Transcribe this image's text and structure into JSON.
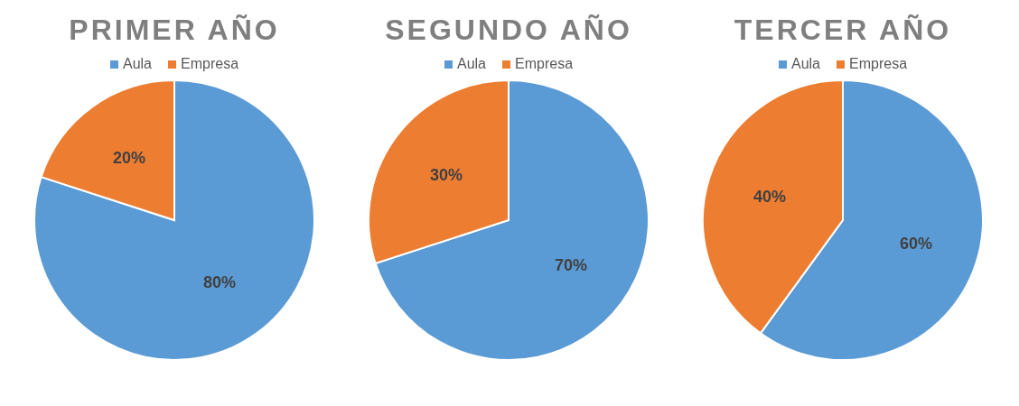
{
  "chart_data": [
    {
      "type": "pie",
      "title": "PRIMER AÑO",
      "categories": [
        "Aula",
        "Empresa"
      ],
      "values": [
        80,
        20
      ],
      "colors": [
        "#5b9bd5",
        "#ed7d31"
      ],
      "value_labels": [
        "80%",
        "20%"
      ],
      "legend": "top"
    },
    {
      "type": "pie",
      "title": "SEGUNDO AÑO",
      "categories": [
        "Aula",
        "Empresa"
      ],
      "values": [
        70,
        30
      ],
      "colors": [
        "#5b9bd5",
        "#ed7d31"
      ],
      "value_labels": [
        "70%",
        "30%"
      ],
      "legend": "top"
    },
    {
      "type": "pie",
      "title": "TERCER AÑO",
      "categories": [
        "Aula",
        "Empresa"
      ],
      "values": [
        60,
        40
      ],
      "colors": [
        "#5b9bd5",
        "#ed7d31"
      ],
      "value_labels": [
        "60%",
        "40%"
      ],
      "legend": "top"
    }
  ]
}
